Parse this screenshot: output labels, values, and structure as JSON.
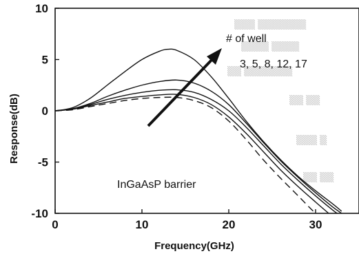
{
  "chart_data": {
    "type": "line",
    "title": "",
    "xlabel": "Frequency(GHz)",
    "ylabel": "Response(dB)",
    "xlim": [
      0,
      35
    ],
    "ylim": [
      -10,
      10
    ],
    "xticks": [
      "0",
      "10",
      "20",
      "30"
    ],
    "yticks": [
      "10",
      "5",
      "0",
      "-5",
      "-10"
    ],
    "grid": false,
    "annotations": {
      "arrow_label": "# of well",
      "arrow_values": "3, 5, 8, 12, 17",
      "barrier_label": "InGaAsP  barrier"
    },
    "series": [
      {
        "values": [
          [
            0,
            0
          ],
          [
            2,
            0.3
          ],
          [
            4,
            1.2
          ],
          [
            6,
            2.5
          ],
          [
            8,
            3.8
          ],
          [
            10,
            5
          ],
          [
            12,
            5.8
          ],
          [
            13,
            6
          ],
          [
            14,
            5.9
          ],
          [
            16,
            5
          ],
          [
            18,
            3.3
          ],
          [
            20,
            1.2
          ],
          [
            22,
            -1
          ],
          [
            24,
            -3
          ],
          [
            26,
            -4.8
          ],
          [
            28,
            -6.4
          ],
          [
            30,
            -7.8
          ],
          [
            32,
            -9.1
          ],
          [
            33,
            -9.8
          ]
        ]
      },
      {
        "values": [
          [
            0,
            0
          ],
          [
            2,
            0.2
          ],
          [
            4,
            0.7
          ],
          [
            6,
            1.4
          ],
          [
            8,
            2
          ],
          [
            10,
            2.5
          ],
          [
            12,
            2.85
          ],
          [
            14,
            3
          ],
          [
            16,
            2.7
          ],
          [
            18,
            1.9
          ],
          [
            20,
            0.6
          ],
          [
            22,
            -1.2
          ],
          [
            24,
            -3.1
          ],
          [
            26,
            -4.9
          ],
          [
            28,
            -6.5
          ],
          [
            30,
            -8
          ],
          [
            32,
            -9.4
          ],
          [
            33,
            -10
          ]
        ]
      },
      {
        "values": [
          [
            0,
            0
          ],
          [
            2,
            0.2
          ],
          [
            4,
            0.6
          ],
          [
            6,
            1.1
          ],
          [
            8,
            1.5
          ],
          [
            10,
            1.8
          ],
          [
            12,
            2
          ],
          [
            14,
            2.05
          ],
          [
            16,
            1.8
          ],
          [
            18,
            1.1
          ],
          [
            20,
            0
          ],
          [
            22,
            -1.6
          ],
          [
            24,
            -3.4
          ],
          [
            26,
            -5.2
          ],
          [
            28,
            -6.8
          ],
          [
            30,
            -8.3
          ],
          [
            32,
            -9.7
          ],
          [
            32.5,
            -10
          ]
        ]
      },
      {
        "values": [
          [
            0,
            0
          ],
          [
            2,
            0.15
          ],
          [
            4,
            0.5
          ],
          [
            6,
            0.85
          ],
          [
            8,
            1.2
          ],
          [
            10,
            1.4
          ],
          [
            12,
            1.55
          ],
          [
            14,
            1.6
          ],
          [
            16,
            1.3
          ],
          [
            18,
            0.6
          ],
          [
            20,
            -0.6
          ],
          [
            22,
            -2.2
          ],
          [
            24,
            -4
          ],
          [
            26,
            -5.8
          ],
          [
            28,
            -7.4
          ],
          [
            30,
            -8.9
          ],
          [
            31.5,
            -10
          ]
        ]
      },
      {
        "values": [
          [
            0,
            0
          ],
          [
            2,
            0.1
          ],
          [
            4,
            0.4
          ],
          [
            6,
            0.7
          ],
          [
            8,
            1
          ],
          [
            10,
            1.2
          ],
          [
            12,
            1.3
          ],
          [
            14,
            1.3
          ],
          [
            16,
            1
          ],
          [
            18,
            0.3
          ],
          [
            20,
            -1
          ],
          [
            22,
            -2.8
          ],
          [
            24,
            -4.8
          ],
          [
            26,
            -6.6
          ],
          [
            28,
            -8.3
          ],
          [
            29.5,
            -9.6
          ],
          [
            30,
            -10
          ]
        ],
        "dash": "10,6"
      }
    ]
  }
}
